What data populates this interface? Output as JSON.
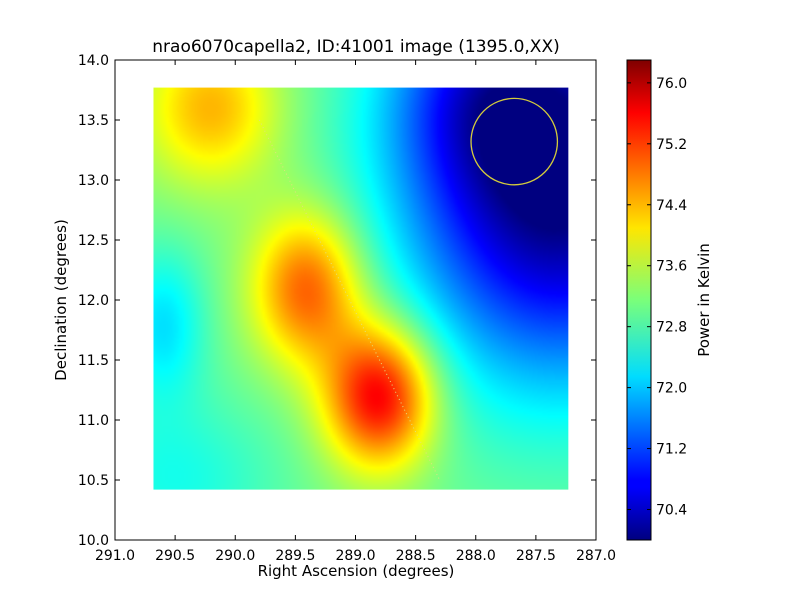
{
  "chart_data": {
    "type": "heatmap",
    "title": "nrao6070capella2, ID:41001 image (1395.0,XX)",
    "xlabel": "Right Ascension (degrees)",
    "ylabel": "Declination (degrees)",
    "colorbar_label": "Power in Kelvin",
    "x_direction": "decreasing",
    "xlim": [
      291.0,
      287.0
    ],
    "ylim": [
      10.0,
      14.0
    ],
    "x_ticks": [
      291.0,
      290.5,
      290.0,
      289.5,
      289.0,
      288.5,
      288.0,
      287.5,
      287.0
    ],
    "x_tick_labels": [
      "291.0",
      "290.5",
      "290.0",
      "289.5",
      "289.0",
      "288.5",
      "288.0",
      "287.5",
      "287.0"
    ],
    "y_ticks": [
      10.0,
      10.5,
      11.0,
      11.5,
      12.0,
      12.5,
      13.0,
      13.5,
      14.0
    ],
    "y_tick_labels": [
      "10.0",
      "10.5",
      "11.0",
      "11.5",
      "12.0",
      "12.5",
      "13.0",
      "13.5",
      "14.0"
    ],
    "image_extent": {
      "ra": [
        290.68,
        287.23
      ],
      "dec": [
        10.42,
        13.77
      ]
    },
    "colormap": "jet",
    "color_range": [
      70.0,
      76.3
    ],
    "colorbar_ticks": [
      70.4,
      71.2,
      72.0,
      72.8,
      73.6,
      74.4,
      75.2,
      76.0
    ],
    "colorbar_tick_labels": [
      "70.4",
      "71.2",
      "72.0",
      "72.8",
      "73.6",
      "74.4",
      "75.2",
      "76.0"
    ],
    "field": {
      "base": 73.1,
      "components": [
        {
          "ra": 288.8,
          "dec": 11.2,
          "sigma_ra": 0.32,
          "sigma_dec": 0.42,
          "amplitude": 2.6
        },
        {
          "ra": 289.4,
          "dec": 12.1,
          "sigma_ra": 0.32,
          "sigma_dec": 0.45,
          "amplitude": 1.9
        },
        {
          "ra": 290.2,
          "dec": 13.6,
          "sigma_ra": 0.4,
          "sigma_dec": 0.45,
          "amplitude": 1.3
        },
        {
          "ra": 287.3,
          "dec": 12.9,
          "sigma_ra": 0.9,
          "sigma_dec": 1.1,
          "amplitude": -3.1
        },
        {
          "ra": 287.9,
          "dec": 13.75,
          "sigma_ra": 0.6,
          "sigma_dec": 0.6,
          "amplitude": -1.2
        },
        {
          "ra": 290.6,
          "dec": 11.8,
          "sigma_ra": 0.25,
          "sigma_dec": 0.45,
          "amplitude": -0.9
        },
        {
          "ra": 290.5,
          "dec": 10.5,
          "sigma_ra": 0.6,
          "sigma_dec": 0.5,
          "amplitude": -0.6
        }
      ]
    },
    "overlays": {
      "beam_circle": {
        "ra": 287.68,
        "dec": 13.32,
        "radius_deg": 0.36,
        "color": "#d4cc3c"
      },
      "scan_line": {
        "from": [
          289.8,
          13.5
        ],
        "to": [
          288.3,
          10.5
        ],
        "style": "dotted",
        "color": "#e0e080"
      }
    },
    "grid": false
  }
}
